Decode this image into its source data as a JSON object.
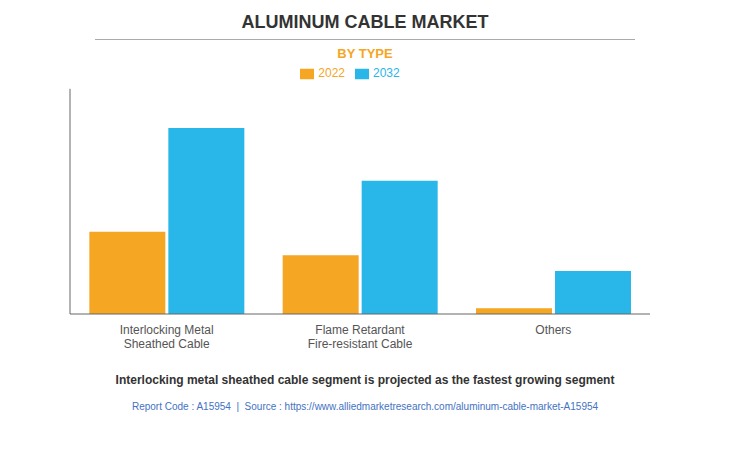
{
  "chart_data": {
    "type": "bar",
    "title": "ALUMINUM CABLE MARKET",
    "subtitle": "BY TYPE",
    "categories": [
      "Interlocking Metal\nSheathed Cable",
      "Flame Retardant\nFire-resistant Cable",
      "Others"
    ],
    "series": [
      {
        "name": "2022",
        "color": "#F5A623",
        "values": [
          0.42,
          0.3,
          0.03
        ]
      },
      {
        "name": "2032",
        "color": "#29B6E8",
        "values": [
          0.95,
          0.68,
          0.22
        ]
      }
    ],
    "ylim": [
      0,
      1.15
    ],
    "yticks": [],
    "grid": false,
    "legend": "top",
    "tick_labels": "x",
    "annotations": [
      "Interlocking metal sheathed cable segment is projected as the fastest growing segment",
      "Report Code : A15954  |  Source : https://www.alliedmarketresearch.com/aluminum-cable-market-A15954"
    ]
  }
}
